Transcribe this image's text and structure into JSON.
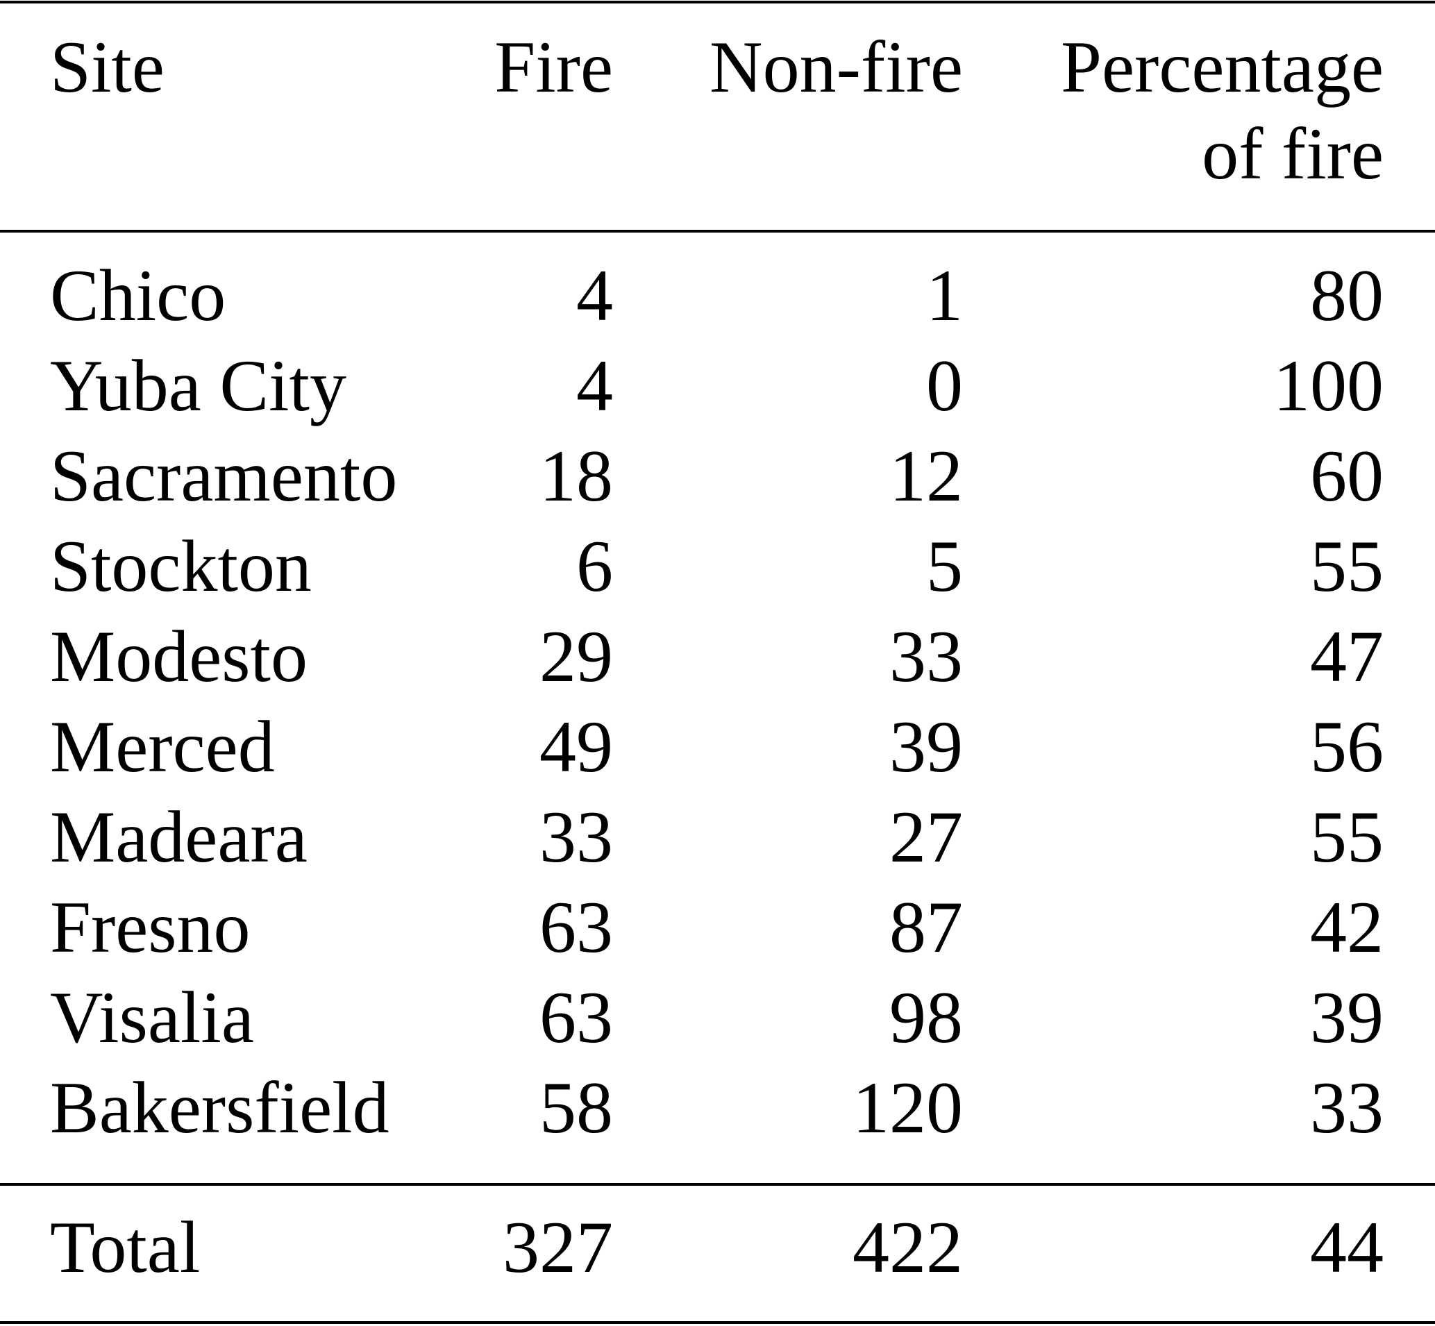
{
  "table": {
    "header": [
      "Site",
      "Fire",
      "Non-fire",
      [
        "Percentage",
        "of fire"
      ]
    ],
    "rows": [
      [
        "Chico",
        4,
        1,
        80
      ],
      [
        "Yuba City",
        4,
        0,
        100
      ],
      [
        "Sacramento",
        18,
        12,
        60
      ],
      [
        "Stockton",
        6,
        5,
        55
      ],
      [
        "Modesto",
        29,
        33,
        47
      ],
      [
        "Merced",
        49,
        39,
        56
      ],
      [
        "Madeara",
        33,
        27,
        55
      ],
      [
        "Fresno",
        63,
        87,
        42
      ],
      [
        "Visalia",
        63,
        98,
        39
      ],
      [
        "Bakersfield",
        58,
        120,
        33
      ]
    ],
    "total": [
      "Total",
      327,
      422,
      44
    ]
  }
}
